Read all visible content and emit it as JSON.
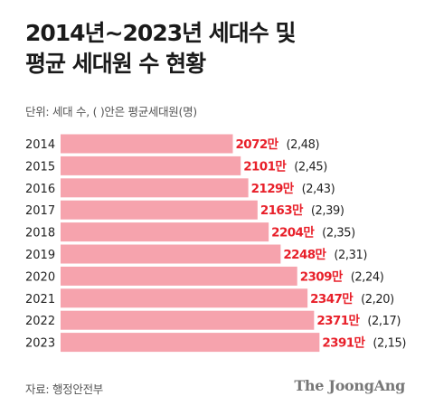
{
  "header": {
    "title_line1": "2014년~2023년 세대수 및",
    "title_line2": "평균 세대원 수 현황",
    "unit_note": "단위: 세대 수, ( )안은 평균세대원(명)"
  },
  "footer": {
    "source": "자료: 행정안전부",
    "brand": "The JoongAng"
  },
  "colors": {
    "bar": "#f6a3ad",
    "value_label": "#e8202a",
    "avg_label": "#222222"
  },
  "chart_data": {
    "type": "bar",
    "orientation": "horizontal",
    "categories": [
      "2014",
      "2015",
      "2016",
      "2017",
      "2018",
      "2019",
      "2020",
      "2021",
      "2022",
      "2023"
    ],
    "values": [
      2072,
      2101,
      2129,
      2163,
      2204,
      2248,
      2309,
      2347,
      2371,
      2391
    ],
    "value_labels": [
      "2072만",
      "2101만",
      "2129만",
      "2163만",
      "2204만",
      "2248만",
      "2309만",
      "2347만",
      "2371만",
      "2391만"
    ],
    "avg_members": [
      2.48,
      2.45,
      2.43,
      2.39,
      2.35,
      2.31,
      2.24,
      2.2,
      2.17,
      2.15
    ],
    "avg_labels": [
      "(2,48)",
      "(2,45)",
      "(2,43)",
      "(2,39)",
      "(2,35)",
      "(2,31)",
      "(2,24)",
      "(2,20)",
      "(2,17)",
      "(2,15)"
    ],
    "title": "2014년~2023년 세대수 및 평균 세대원 수 현황",
    "xlabel": "",
    "ylabel": "",
    "grid": false,
    "legend": "none"
  }
}
